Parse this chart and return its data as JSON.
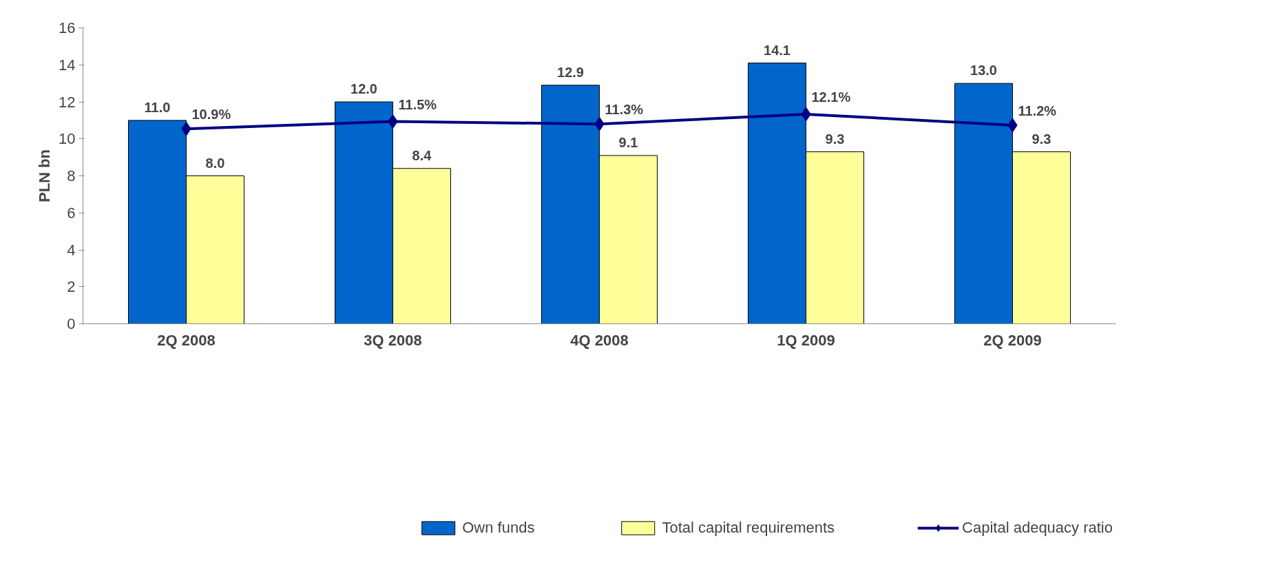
{
  "chart_data": {
    "type": "bar",
    "ylabel": "PLN bn",
    "categories": [
      "2Q 2008",
      "3Q 2008",
      "4Q 2008",
      "1Q 2009",
      "2Q 2009"
    ],
    "series": [
      {
        "name": "Own funds",
        "color": "#0066cc",
        "values": [
          11.0,
          12.0,
          12.9,
          14.1,
          13.0
        ],
        "value_labels": [
          "11.0",
          "12.0",
          "12.9",
          "14.1",
          "13.0"
        ]
      },
      {
        "name": "Total capital requirements",
        "color": "#ffff99",
        "values": [
          8.0,
          8.4,
          9.1,
          9.3,
          9.3
        ],
        "value_labels": [
          "8.0",
          "8.4",
          "9.1",
          "9.3",
          "9.3"
        ]
      },
      {
        "name": "Capital adequacy ratio",
        "type": "line",
        "axis": "y2",
        "color": "#000080",
        "marker": "diamond",
        "values": [
          10.9,
          11.5,
          11.3,
          12.1,
          11.2
        ],
        "value_labels": [
          "10.9%",
          "11.5%",
          "11.3%",
          "12.1%",
          "11.2%"
        ]
      }
    ],
    "ylim": [
      0,
      16
    ],
    "yticks": [
      0,
      2,
      4,
      6,
      8,
      10,
      12,
      14,
      16
    ],
    "grid": false,
    "legend": "bottom"
  }
}
